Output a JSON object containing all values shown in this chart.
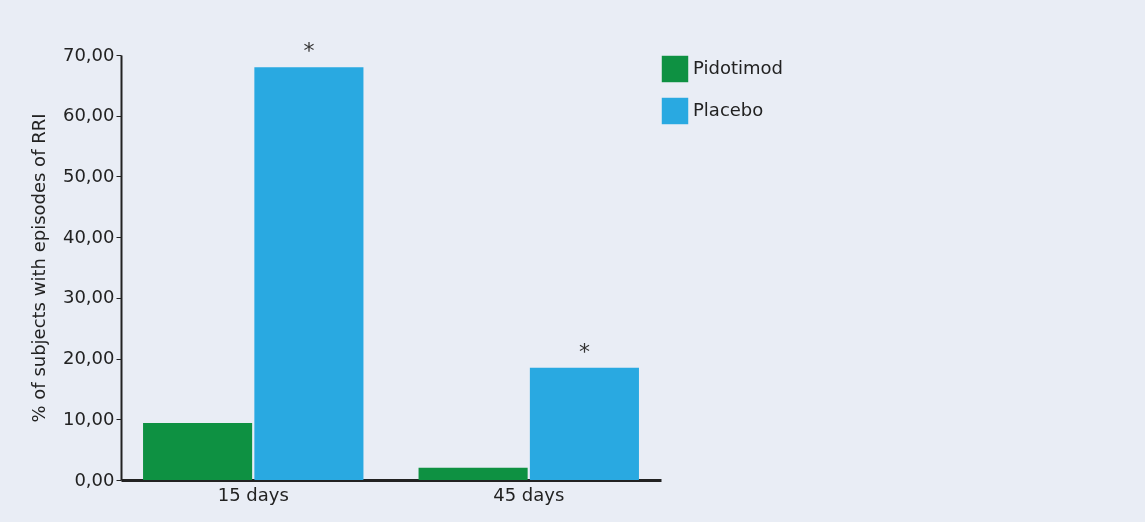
{
  "chart_data": {
    "type": "bar",
    "ylabel": "% of subjects with episodes of RRI",
    "categories": [
      "15 days",
      "45 days"
    ],
    "series": [
      {
        "name": "Pidotimod",
        "color": "#0e9142",
        "values": [
          9.4,
          2.0
        ]
      },
      {
        "name": "Placebo",
        "color": "#29a9e1",
        "values": [
          68.0,
          18.5
        ]
      }
    ],
    "ylim": [
      0,
      70
    ],
    "yticks": [
      {
        "value": 0,
        "label": "0,00"
      },
      {
        "value": 10,
        "label": "10,00"
      },
      {
        "value": 20,
        "label": "20,00"
      },
      {
        "value": 30,
        "label": "30,00"
      },
      {
        "value": 40,
        "label": "40,00"
      },
      {
        "value": 50,
        "label": "50,00"
      },
      {
        "value": 60,
        "label": "60,00"
      },
      {
        "value": 70,
        "label": "70,00"
      }
    ],
    "annotations": [
      {
        "text": "*",
        "x": "15 days",
        "y": 68.0
      },
      {
        "text": "*",
        "x": "45 days",
        "y": 18.5
      }
    ],
    "legend": "top right",
    "grid": false
  }
}
